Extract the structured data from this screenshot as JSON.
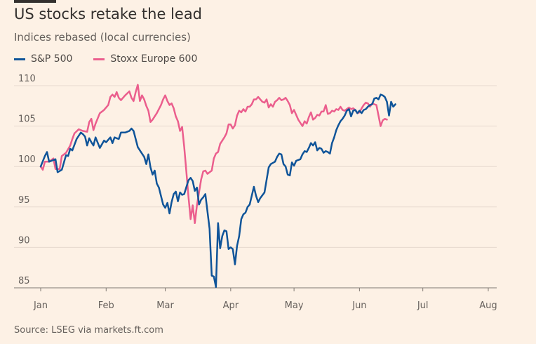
{
  "title": "US stocks retake the lead",
  "subtitle": "Indices rebased (local currencies)",
  "source": "Source: LSEG via markets.ft.com",
  "colors": {
    "background": "#fdf1e5",
    "grid": "#e6d9ce",
    "sp500": "#0f5499",
    "stoxx": "#eb5e8d"
  },
  "chart_data": {
    "type": "line",
    "title": "US stocks retake the lead",
    "subtitle": "Indices rebased (local currencies)",
    "xlabel": "",
    "ylabel": "",
    "x_unit": "days since 2025-01-01",
    "x_ticks": [
      {
        "label": "Jan",
        "x": 0
      },
      {
        "label": "Feb",
        "x": 31
      },
      {
        "label": "Mar",
        "x": 59
      },
      {
        "label": "Apr",
        "x": 90
      },
      {
        "label": "May",
        "x": 120
      },
      {
        "label": "Jun",
        "x": 151
      },
      {
        "label": "Jul",
        "x": 181
      },
      {
        "label": "Aug",
        "x": 212
      }
    ],
    "xlim": [
      0,
      216
    ],
    "ylim": [
      85,
      110
    ],
    "y_ticks": [
      85,
      90,
      95,
      100,
      105,
      110
    ],
    "grid": true,
    "legend": "top-left",
    "series": [
      {
        "name": "S&P 500",
        "color": "#0f5499",
        "points": [
          [
            0,
            100
          ],
          [
            2,
            101.3
          ],
          [
            3,
            101.8
          ],
          [
            4,
            100.6
          ],
          [
            6,
            100.8
          ],
          [
            7,
            100.9
          ],
          [
            8,
            99.3
          ],
          [
            10,
            99.6
          ],
          [
            12,
            101.4
          ],
          [
            13,
            101.3
          ],
          [
            14,
            102.2
          ],
          [
            15,
            102.0
          ],
          [
            17,
            103.4
          ],
          [
            19,
            104.2
          ],
          [
            20,
            104.0
          ],
          [
            21,
            103.7
          ],
          [
            22,
            102.6
          ],
          [
            23,
            103.5
          ],
          [
            24,
            103.0
          ],
          [
            25,
            102.6
          ],
          [
            26,
            103.6
          ],
          [
            28,
            102.3
          ],
          [
            30,
            103.2
          ],
          [
            31,
            103.0
          ],
          [
            33,
            103.6
          ],
          [
            34,
            102.9
          ],
          [
            35,
            103.6
          ],
          [
            36,
            103.5
          ],
          [
            37,
            103.4
          ],
          [
            38,
            104.2
          ],
          [
            40,
            104.2
          ],
          [
            42,
            104.4
          ],
          [
            43,
            104.7
          ],
          [
            44,
            104.4
          ],
          [
            46,
            102.4
          ],
          [
            48,
            101.6
          ],
          [
            49,
            101.2
          ],
          [
            50,
            100.3
          ],
          [
            51,
            101.5
          ],
          [
            52,
            99.9
          ],
          [
            53,
            99.0
          ],
          [
            54,
            99.5
          ],
          [
            55,
            97.9
          ],
          [
            56,
            97.4
          ],
          [
            58,
            95.3
          ],
          [
            59,
            94.9
          ],
          [
            60,
            95.5
          ],
          [
            61,
            94.2
          ],
          [
            62,
            95.6
          ],
          [
            63,
            96.6
          ],
          [
            64,
            96.9
          ],
          [
            65,
            95.7
          ],
          [
            66,
            96.8
          ],
          [
            67,
            96.5
          ],
          [
            68,
            96.6
          ],
          [
            70,
            98.3
          ],
          [
            71,
            98.6
          ],
          [
            72,
            98.2
          ],
          [
            73,
            97.0
          ],
          [
            74,
            97.4
          ],
          [
            75,
            95.3
          ],
          [
            76,
            95.9
          ],
          [
            77,
            96.2
          ],
          [
            78,
            96.6
          ],
          [
            80,
            92.3
          ],
          [
            81,
            86.5
          ],
          [
            82,
            86.4
          ],
          [
            83,
            85.1
          ],
          [
            84,
            93.0
          ],
          [
            85,
            89.9
          ],
          [
            86,
            91.4
          ],
          [
            87,
            92.1
          ],
          [
            88,
            92.0
          ],
          [
            89,
            89.8
          ],
          [
            90,
            90.0
          ],
          [
            91,
            89.8
          ],
          [
            92,
            87.9
          ],
          [
            93,
            90.2
          ],
          [
            94,
            91.4
          ],
          [
            95,
            93.5
          ],
          [
            96,
            94.1
          ],
          [
            97,
            94.3
          ],
          [
            98,
            95.0
          ],
          [
            99,
            95.3
          ],
          [
            100,
            96.4
          ],
          [
            101,
            97.5
          ],
          [
            102,
            96.4
          ],
          [
            103,
            95.6
          ],
          [
            104,
            96.1
          ],
          [
            106,
            96.8
          ],
          [
            108,
            99.9
          ],
          [
            109,
            100.3
          ],
          [
            111,
            100.6
          ],
          [
            112,
            101.2
          ],
          [
            113,
            101.6
          ],
          [
            114,
            101.5
          ],
          [
            115,
            100.3
          ],
          [
            116,
            100.0
          ],
          [
            117,
            99.0
          ],
          [
            118,
            98.9
          ],
          [
            119,
            100.5
          ],
          [
            120,
            100.1
          ],
          [
            121,
            100.7
          ],
          [
            123,
            100.9
          ],
          [
            124,
            101.5
          ],
          [
            125,
            101.9
          ],
          [
            126,
            101.8
          ],
          [
            127,
            102.3
          ],
          [
            128,
            102.9
          ],
          [
            129,
            102.6
          ],
          [
            130,
            103.0
          ],
          [
            131,
            102.0
          ],
          [
            132,
            102.3
          ],
          [
            133,
            102.2
          ],
          [
            134,
            101.7
          ],
          [
            135,
            101.9
          ],
          [
            136,
            101.8
          ],
          [
            137,
            101.6
          ],
          [
            138,
            102.9
          ],
          [
            139,
            103.6
          ],
          [
            140,
            104.5
          ],
          [
            141,
            105.1
          ],
          [
            142,
            105.6
          ],
          [
            143,
            105.9
          ],
          [
            144,
            106.3
          ],
          [
            145,
            106.9
          ],
          [
            146,
            107.1
          ],
          [
            147,
            106.2
          ],
          [
            148,
            106.9
          ],
          [
            149,
            107.0
          ],
          [
            150,
            106.6
          ],
          [
            151,
            106.9
          ],
          [
            152,
            106.6
          ],
          [
            153,
            107.0
          ],
          [
            154,
            107.1
          ],
          [
            155,
            107.4
          ],
          [
            156,
            107.6
          ],
          [
            157,
            107.7
          ],
          [
            158,
            108.4
          ],
          [
            159,
            108.5
          ],
          [
            160,
            108.3
          ],
          [
            161,
            108.9
          ],
          [
            162,
            108.8
          ],
          [
            163,
            108.6
          ],
          [
            164,
            108.0
          ],
          [
            165,
            106.3
          ],
          [
            166,
            108.0
          ],
          [
            167,
            107.4
          ],
          [
            168,
            107.7
          ]
        ]
      },
      {
        "name": "Stoxx Europe 600",
        "color": "#eb5e8d",
        "points": [
          [
            0,
            100
          ],
          [
            1,
            99.6
          ],
          [
            2,
            100.6
          ],
          [
            4,
            100.6
          ],
          [
            6,
            101.0
          ],
          [
            7,
            99.7
          ],
          [
            8,
            99.7
          ],
          [
            9,
            99.7
          ],
          [
            10,
            101.3
          ],
          [
            12,
            101.7
          ],
          [
            14,
            102.6
          ],
          [
            15,
            103.4
          ],
          [
            16,
            104.1
          ],
          [
            18,
            104.6
          ],
          [
            20,
            104.4
          ],
          [
            22,
            104.3
          ],
          [
            23,
            105.5
          ],
          [
            24,
            105.9
          ],
          [
            25,
            104.5
          ],
          [
            26,
            105.3
          ],
          [
            28,
            106.6
          ],
          [
            30,
            107.0
          ],
          [
            32,
            107.6
          ],
          [
            33,
            108.6
          ],
          [
            34,
            108.9
          ],
          [
            35,
            108.6
          ],
          [
            36,
            109.2
          ],
          [
            37,
            108.5
          ],
          [
            38,
            108.2
          ],
          [
            40,
            108.8
          ],
          [
            42,
            109.3
          ],
          [
            43,
            108.5
          ],
          [
            44,
            108.1
          ],
          [
            45,
            109.2
          ],
          [
            46,
            110.1
          ],
          [
            47,
            108.1
          ],
          [
            48,
            108.8
          ],
          [
            49,
            108.3
          ],
          [
            50,
            107.5
          ],
          [
            51,
            106.9
          ],
          [
            52,
            105.5
          ],
          [
            53,
            105.8
          ],
          [
            55,
            106.6
          ],
          [
            57,
            107.6
          ],
          [
            58,
            108.3
          ],
          [
            59,
            108.8
          ],
          [
            60,
            108.1
          ],
          [
            61,
            107.6
          ],
          [
            62,
            107.8
          ],
          [
            63,
            107.2
          ],
          [
            64,
            106.2
          ],
          [
            65,
            105.6
          ],
          [
            66,
            104.4
          ],
          [
            67,
            104.9
          ],
          [
            68,
            102.4
          ],
          [
            69,
            99.4
          ],
          [
            70,
            96.3
          ],
          [
            71,
            93.5
          ],
          [
            72,
            95.2
          ],
          [
            73,
            93.0
          ],
          [
            74,
            95.2
          ],
          [
            75,
            96.8
          ],
          [
            76,
            98.4
          ],
          [
            77,
            99.4
          ],
          [
            78,
            99.5
          ],
          [
            79,
            99.1
          ],
          [
            81,
            99.5
          ],
          [
            82,
            101.0
          ],
          [
            83,
            101.6
          ],
          [
            84,
            101.8
          ],
          [
            85,
            102.8
          ],
          [
            86,
            103.2
          ],
          [
            87,
            103.6
          ],
          [
            88,
            104.1
          ],
          [
            89,
            105.2
          ],
          [
            90,
            105.2
          ],
          [
            91,
            104.7
          ],
          [
            92,
            105.1
          ],
          [
            93,
            106.3
          ],
          [
            94,
            106.9
          ],
          [
            95,
            106.7
          ],
          [
            96,
            107.1
          ],
          [
            97,
            106.8
          ],
          [
            98,
            107.4
          ],
          [
            99,
            107.4
          ],
          [
            100,
            107.7
          ],
          [
            101,
            108.3
          ],
          [
            102,
            108.3
          ],
          [
            103,
            108.6
          ],
          [
            104,
            108.3
          ],
          [
            105,
            108.0
          ],
          [
            106,
            107.9
          ],
          [
            107,
            108.3
          ],
          [
            108,
            107.3
          ],
          [
            109,
            107.7
          ],
          [
            110,
            107.4
          ],
          [
            111,
            108.0
          ],
          [
            112,
            108.2
          ],
          [
            113,
            108.5
          ],
          [
            114,
            108.2
          ],
          [
            115,
            108.3
          ],
          [
            116,
            108.5
          ],
          [
            117,
            108.1
          ],
          [
            118,
            107.6
          ],
          [
            119,
            106.6
          ],
          [
            120,
            107.0
          ],
          [
            121,
            106.4
          ],
          [
            122,
            105.8
          ],
          [
            123,
            105.4
          ],
          [
            124,
            105.0
          ],
          [
            125,
            105.6
          ],
          [
            126,
            105.3
          ],
          [
            127,
            106.1
          ],
          [
            128,
            106.7
          ],
          [
            129,
            105.8
          ],
          [
            130,
            106.0
          ],
          [
            131,
            106.4
          ],
          [
            132,
            106.3
          ],
          [
            133,
            106.8
          ],
          [
            134,
            106.8
          ],
          [
            135,
            107.6
          ],
          [
            136,
            106.5
          ],
          [
            137,
            106.6
          ],
          [
            138,
            106.9
          ],
          [
            139,
            106.8
          ],
          [
            140,
            107.1
          ],
          [
            141,
            107.0
          ],
          [
            142,
            107.4
          ],
          [
            143,
            107.0
          ],
          [
            144,
            106.9
          ],
          [
            145,
            107.1
          ],
          [
            146,
            107.3
          ],
          [
            147,
            107.1
          ],
          [
            148,
            107.2
          ],
          [
            149,
            107.0
          ],
          [
            150,
            106.6
          ],
          [
            151,
            106.7
          ],
          [
            152,
            107.2
          ],
          [
            153,
            107.6
          ],
          [
            154,
            107.9
          ],
          [
            155,
            107.8
          ],
          [
            156,
            107.4
          ],
          [
            157,
            107.8
          ],
          [
            158,
            107.7
          ],
          [
            159,
            107.6
          ],
          [
            160,
            106.3
          ],
          [
            161,
            105.0
          ],
          [
            162,
            105.7
          ],
          [
            163,
            105.9
          ],
          [
            164,
            105.8
          ]
        ]
      }
    ]
  }
}
